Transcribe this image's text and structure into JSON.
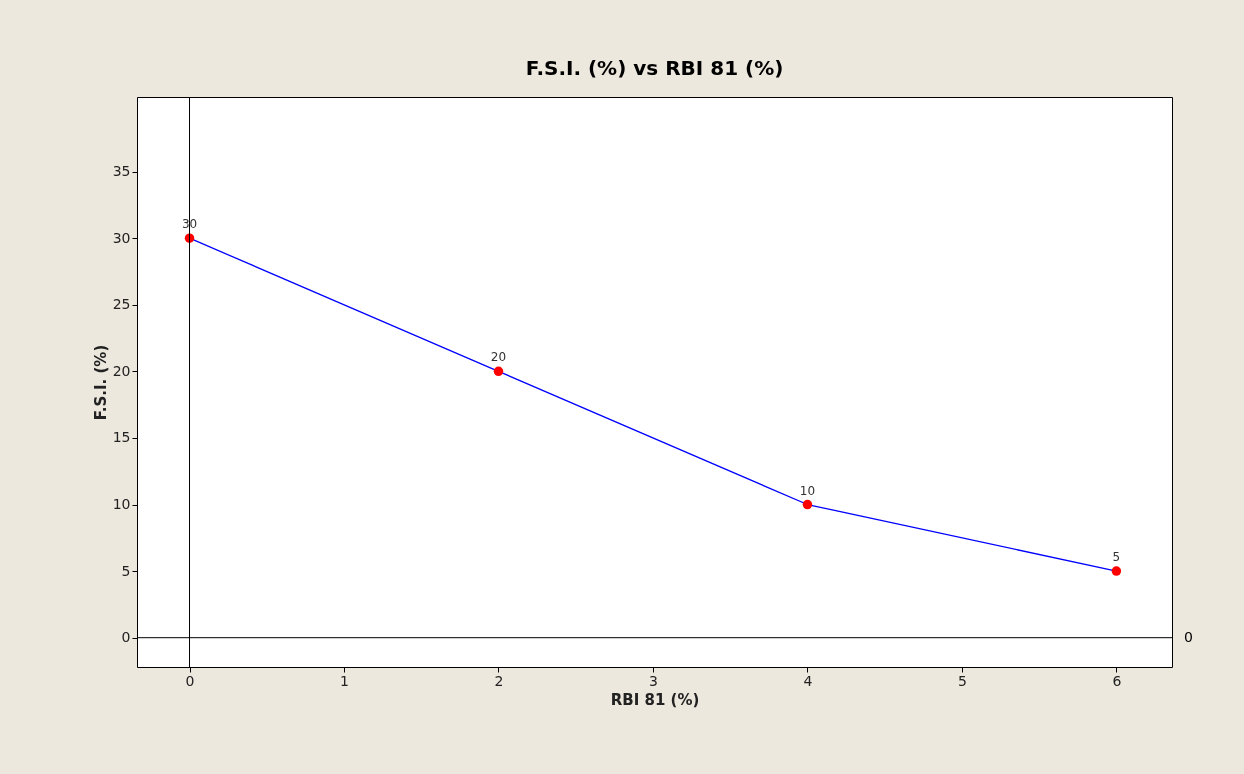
{
  "chart_data": {
    "type": "line",
    "title": "F.S.I. (%) vs RBI 81 (%)",
    "xlabel": "RBI 81 (%)",
    "ylabel": "F.S.I. (%)",
    "x": [
      0,
      2,
      4,
      6
    ],
    "series": [
      {
        "color": "#0000ff",
        "colors": [
          "#ff0000",
          "#ff0000",
          "#ff0000",
          "#ff0000"
        ],
        "values": [
          30,
          20,
          10,
          5
        ]
      }
    ],
    "xlim": [
      -0.34,
      6.36
    ],
    "xticks": [
      0,
      1,
      2,
      3,
      4,
      5,
      6
    ],
    "ylim": [
      -2.2,
      40.6
    ],
    "yticks": [
      0,
      5,
      10,
      15,
      20,
      25,
      30,
      35
    ],
    "ref_lines": [
      {
        "axis": "x",
        "value": 0,
        "color": "#000000"
      },
      {
        "axis": "y",
        "value": 0,
        "label": "0",
        "color": "#000000"
      }
    ],
    "data_labels": true,
    "marker": "circle",
    "line_style": "solid"
  }
}
